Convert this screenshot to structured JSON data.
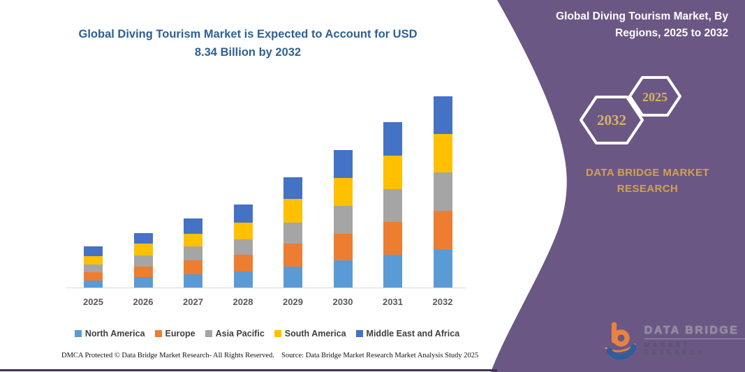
{
  "page": {
    "background": "#ffffff",
    "accent_purple": "#6b5784",
    "bottom_line_color": "#3c3254"
  },
  "main_title": "Global Diving Tourism Market is Expected to Account for USD 8.34 Billion by 2032",
  "right_panel": {
    "title": "Global Diving Tourism Market, By Regions, 2025 to 2032",
    "hexagons": [
      {
        "label": "2032"
      },
      {
        "label": "2025"
      }
    ],
    "brand_line1": "DATA BRIDGE MARKET",
    "brand_line2": "RESEARCH",
    "gold_color": "#d2a24f"
  },
  "logo": {
    "line1": "DATA BRIDGE",
    "line2": "MARKET RESEARCH",
    "orange": "#e8833f",
    "blue": "#2e5e9c"
  },
  "footer": {
    "left": "DMCA Protected © Data Bridge Market Research-  All Rights Reserved.",
    "right": "Source: Data Bridge Market Research  Market Analysis Study 2025"
  },
  "chart_data": {
    "type": "bar",
    "stacked": true,
    "title": "Global Diving Tourism Market is Expected to Account for USD 8.34 Billion by 2032",
    "unit": "USD Billion",
    "categories": [
      "2025",
      "2026",
      "2027",
      "2028",
      "2029",
      "2030",
      "2031",
      "2032"
    ],
    "series": [
      {
        "name": "North America",
        "color": "#5b9bd5",
        "values": [
          0.35,
          0.48,
          0.6,
          0.73,
          0.95,
          1.2,
          1.45,
          1.7
        ]
      },
      {
        "name": "Europe",
        "color": "#ed7d31",
        "values": [
          0.34,
          0.47,
          0.6,
          0.73,
          0.98,
          1.18,
          1.42,
          1.67
        ]
      },
      {
        "name": "Asia Pacific",
        "color": "#a5a5a5",
        "values": [
          0.35,
          0.48,
          0.62,
          0.66,
          0.91,
          1.21,
          1.44,
          1.67
        ]
      },
      {
        "name": "South America",
        "color": "#ffc000",
        "values": [
          0.36,
          0.52,
          0.56,
          0.73,
          1.04,
          1.21,
          1.44,
          1.66
        ]
      },
      {
        "name": "Middle East and Africa",
        "color": "#4472c4",
        "values": [
          0.42,
          0.44,
          0.64,
          0.79,
          0.94,
          1.2,
          1.46,
          1.64
        ]
      }
    ],
    "totals": [
      1.82,
      2.39,
      3.02,
      3.64,
      4.82,
      6.0,
      7.21,
      8.34
    ],
    "ylim": [
      0,
      8.34
    ],
    "grid": false,
    "y_axis_visible": false,
    "legend_position": "bottom"
  }
}
